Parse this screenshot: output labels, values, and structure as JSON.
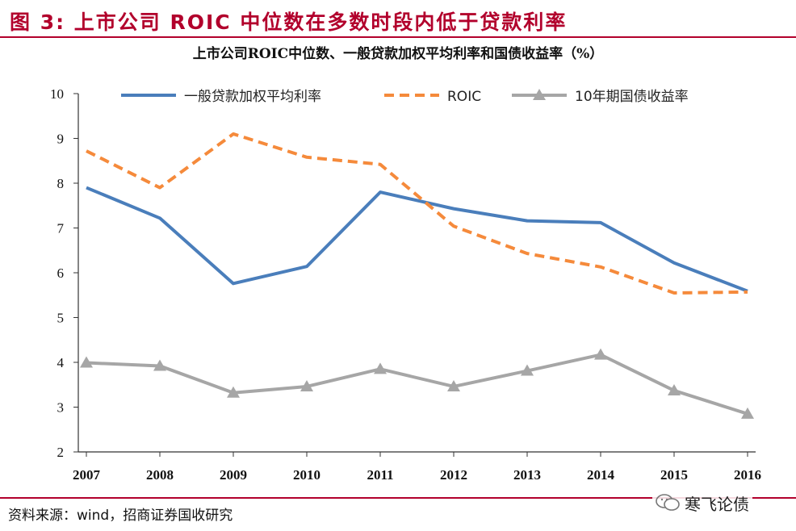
{
  "header": {
    "figure_title": "图 3: 上市公司 ROIC 中位数在多数时段内低于贷款利率"
  },
  "chart_data": {
    "type": "line",
    "title": "上市公司ROIC中位数、一般贷款加权平均利率和国债收益率（%）",
    "categories": [
      "2007",
      "2008",
      "2009",
      "2010",
      "2011",
      "2012",
      "2013",
      "2014",
      "2015",
      "2016"
    ],
    "ylim": [
      2,
      10
    ],
    "yticks": [
      2,
      3,
      4,
      5,
      6,
      7,
      8,
      9,
      10
    ],
    "legend_position": "top",
    "series": [
      {
        "name": "一般贷款加权平均利率",
        "color": "#4a7ebb",
        "style": "solid",
        "marker": "none",
        "values": [
          7.9,
          7.22,
          5.76,
          6.14,
          7.8,
          7.43,
          7.16,
          7.12,
          6.22,
          5.59
        ]
      },
      {
        "name": "ROIC",
        "color": "#f58a3b",
        "style": "dashed",
        "marker": "none",
        "values": [
          8.72,
          7.9,
          9.1,
          8.58,
          8.42,
          7.04,
          6.43,
          6.13,
          5.55,
          5.57
        ]
      },
      {
        "name": "10年期国债收益率",
        "color": "#a6a6a6",
        "style": "solid",
        "marker": "triangle",
        "values": [
          3.99,
          3.92,
          3.32,
          3.46,
          3.85,
          3.46,
          3.81,
          4.17,
          3.37,
          2.85
        ]
      }
    ]
  },
  "footer": {
    "source": "资料来源：wind，招商证券国收研究",
    "watermark": "寒飞论债"
  }
}
